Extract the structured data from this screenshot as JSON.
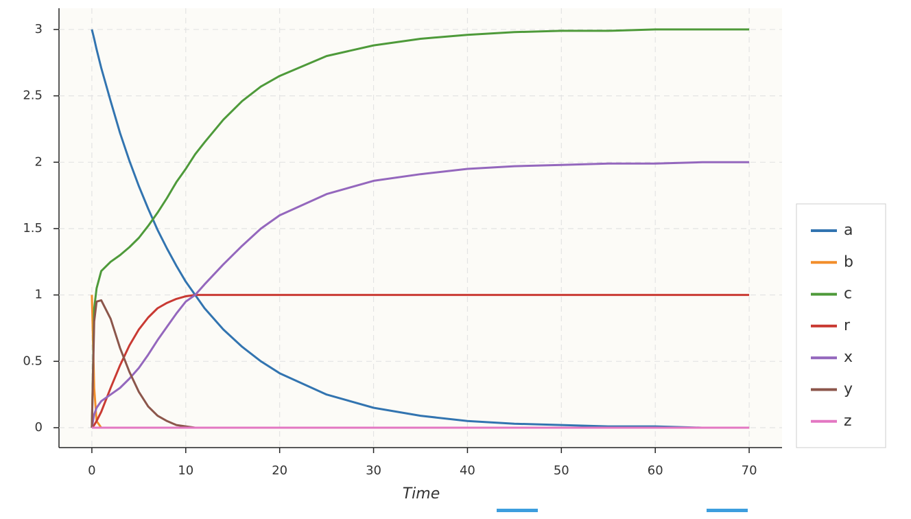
{
  "chart_data": {
    "type": "line",
    "x_label": "Time",
    "x": [
      0,
      0.25,
      0.5,
      1,
      2,
      3,
      4,
      5,
      6,
      7,
      8,
      9,
      10,
      11,
      12,
      14,
      16,
      18,
      20,
      25,
      30,
      35,
      40,
      45,
      50,
      55,
      60,
      65,
      70
    ],
    "series": [
      {
        "name": "a",
        "color": "#3274b0",
        "values": [
          3,
          2.93,
          2.85,
          2.71,
          2.46,
          2.22,
          2.01,
          1.82,
          1.65,
          1.49,
          1.35,
          1.22,
          1.1,
          1.0,
          0.9,
          0.74,
          0.61,
          0.5,
          0.41,
          0.25,
          0.15,
          0.09,
          0.05,
          0.03,
          0.02,
          0.01,
          0.01,
          0,
          0
        ]
      },
      {
        "name": "b",
        "color": "#f28e2b",
        "values": [
          1,
          0.3,
          0.05,
          0,
          0,
          0,
          0,
          0,
          0,
          0,
          0,
          0,
          0,
          0,
          0,
          0,
          0,
          0,
          0,
          0,
          0,
          0,
          0,
          0,
          0,
          0,
          0,
          0,
          0
        ]
      },
      {
        "name": "c",
        "color": "#4e9a3a",
        "values": [
          0,
          0.9,
          1.05,
          1.18,
          1.25,
          1.3,
          1.36,
          1.43,
          1.52,
          1.62,
          1.73,
          1.85,
          1.95,
          2.06,
          2.15,
          2.32,
          2.46,
          2.57,
          2.65,
          2.8,
          2.88,
          2.93,
          2.96,
          2.98,
          2.99,
          2.99,
          3,
          3,
          3
        ]
      },
      {
        "name": "r",
        "color": "#c93a33",
        "values": [
          0,
          0.02,
          0.05,
          0.12,
          0.3,
          0.47,
          0.62,
          0.74,
          0.83,
          0.9,
          0.94,
          0.97,
          0.99,
          1,
          1,
          1,
          1,
          1,
          1,
          1,
          1,
          1,
          1,
          1,
          1,
          1,
          1,
          1,
          1
        ]
      },
      {
        "name": "x",
        "color": "#9467bd",
        "values": [
          0,
          0.1,
          0.15,
          0.2,
          0.25,
          0.3,
          0.37,
          0.45,
          0.55,
          0.66,
          0.76,
          0.86,
          0.95,
          1.0,
          1.08,
          1.23,
          1.37,
          1.5,
          1.6,
          1.76,
          1.86,
          1.91,
          1.95,
          1.97,
          1.98,
          1.99,
          1.99,
          2,
          2
        ]
      },
      {
        "name": "y",
        "color": "#8c564b",
        "values": [
          0,
          0.8,
          0.95,
          0.96,
          0.82,
          0.6,
          0.42,
          0.27,
          0.16,
          0.09,
          0.05,
          0.02,
          0.01,
          0,
          0,
          0,
          0,
          0,
          0,
          0,
          0,
          0,
          0,
          0,
          0,
          0,
          0,
          0,
          0
        ]
      },
      {
        "name": "z",
        "color": "#e377c2",
        "values": [
          0,
          0,
          0,
          0,
          0,
          0,
          0,
          0,
          0,
          0,
          0,
          0,
          0,
          0,
          0,
          0,
          0,
          0,
          0,
          0,
          0,
          0,
          0,
          0,
          0,
          0,
          0,
          0,
          0
        ]
      }
    ],
    "xlim": [
      -3.5,
      73.5
    ],
    "xticks": [
      0,
      10,
      20,
      30,
      40,
      50,
      60,
      70
    ],
    "ylim": [
      -0.15,
      3.16
    ],
    "yticks": [
      0,
      0.5,
      1,
      1.5,
      2,
      2.5,
      3
    ],
    "grid": true
  }
}
